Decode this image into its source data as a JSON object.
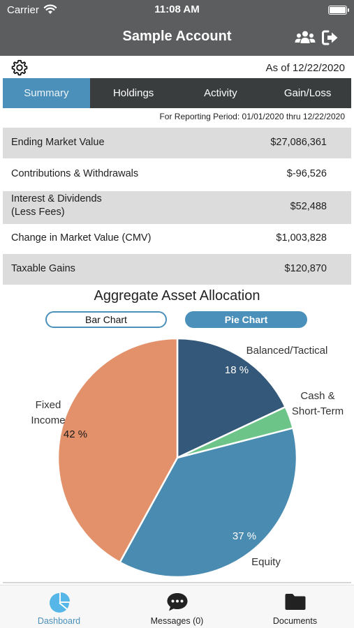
{
  "status_bar": {
    "carrier": "Carrier",
    "time": "11:08 AM"
  },
  "header": {
    "title": "Sample Account",
    "icons": [
      "users-icon",
      "logout-icon"
    ]
  },
  "info": {
    "as_of": "As of 12/22/2020",
    "settings_icon": "gear-icon"
  },
  "tabs": [
    {
      "label": "Summary",
      "active": true
    },
    {
      "label": "Holdings",
      "active": false
    },
    {
      "label": "Activity",
      "active": false
    },
    {
      "label": "Gain/Loss",
      "active": false
    }
  ],
  "reporting_period": "For Reporting Period: 01/01/2020 thru 12/22/2020",
  "summary": [
    {
      "label": "Ending Market Value",
      "value": "$27,086,361"
    },
    {
      "label": "Contributions  & Withdrawals",
      "value": "$-96,526"
    },
    {
      "label_line1": "Interest & Dividends",
      "label_line2": "(Less Fees)",
      "value": "$52,488"
    },
    {
      "label": "Change in Market Value (CMV)",
      "value": "$1,003,828"
    },
    {
      "label": "Taxable Gains",
      "value": "$120,870"
    }
  ],
  "allocation": {
    "title": "Aggregate Asset Allocation",
    "bar_button": "Bar Chart",
    "pie_button": "Pie Chart",
    "selected_view": "Pie Chart"
  },
  "chart_data": {
    "type": "pie",
    "title": "Aggregate Asset Allocation",
    "slices": [
      {
        "label_line1": "Balanced/Tactical",
        "label_line2": "",
        "pct_label": "18 %",
        "value": 18,
        "color": "#34587a"
      },
      {
        "label_line1": "Cash &",
        "label_line2": "Short-Term",
        "pct_label": "",
        "value": 3,
        "color": "#6cc489"
      },
      {
        "label_line1": "Equity",
        "label_line2": "",
        "pct_label": "37 %",
        "value": 37,
        "color": "#4a8bb1"
      },
      {
        "label_line1": "Fixed",
        "label_line2": "Income",
        "pct_label": "42 %",
        "value": 42,
        "color": "#e3916a"
      }
    ]
  },
  "bottom_nav": [
    {
      "label": "Dashboard",
      "icon": "dashboard-pie-icon",
      "active": true
    },
    {
      "label": "Messages (0)",
      "icon": "chat-bubble-icon",
      "active": false
    },
    {
      "label": "Documents",
      "icon": "folder-icon",
      "active": false
    }
  ],
  "colors": {
    "header": "#5b5d5e",
    "tab_bar": "#3a3d3e",
    "accent": "#4a90ba",
    "row_shade": "#dcdcdc"
  }
}
